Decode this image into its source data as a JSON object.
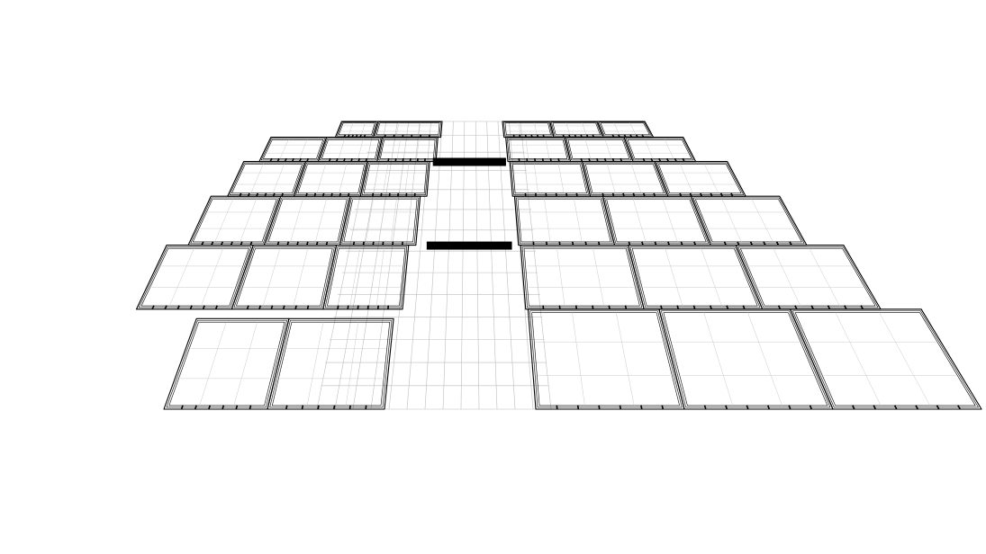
{
  "scene": {
    "background_color": "#ffffff",
    "line_color": "#000000",
    "grid_color": "#bdbdbd",
    "bridge_color": "#000000",
    "projection": "perspective",
    "left_block": {
      "rows": [
        2,
        3,
        3,
        3,
        3,
        2
      ],
      "description_visible": false
    },
    "right_block": {
      "rows": [
        3,
        3,
        3,
        3,
        3,
        3
      ]
    },
    "bridges": 2,
    "ground_grid": true
  }
}
